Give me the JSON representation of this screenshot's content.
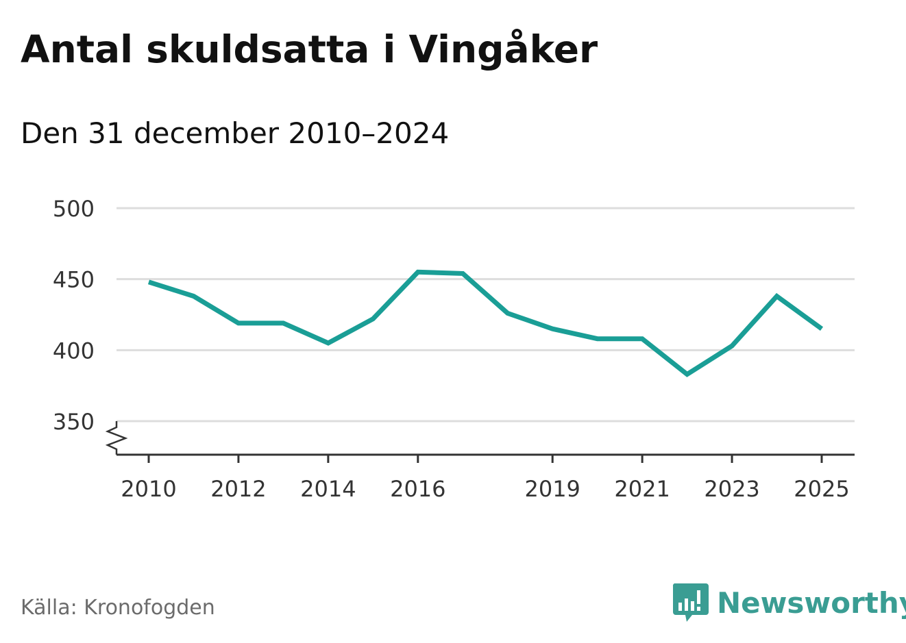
{
  "title": "Antal skuldsatta i Vingåker",
  "subtitle": "Den 31 december 2010–2024",
  "source": "Källa: Kronofogden",
  "logo": {
    "text": "Newsworthy",
    "icon": "bar-chart-speech-bubble-icon"
  },
  "colors": {
    "line": "#1a9e96",
    "grid": "#dddddd",
    "axis": "#333333",
    "logo": "#3a9d93"
  },
  "chart_data": {
    "type": "line",
    "series": [
      {
        "x": [
          2010,
          2011,
          2012,
          2013,
          2014,
          2015,
          2016,
          2017,
          2018,
          2019,
          2020,
          2021,
          2022,
          2023,
          2024,
          2025
        ],
        "values": [
          448,
          438,
          419,
          419,
          405,
          422,
          455,
          454,
          426,
          415,
          408,
          408,
          383,
          403,
          438,
          415
        ]
      }
    ],
    "x_ticks": [
      "2010",
      "2012",
      "2014",
      "2016",
      "2019",
      "2021",
      "2023",
      "2025"
    ],
    "y_ticks": [
      "350",
      "400",
      "450",
      "500"
    ],
    "ylim": [
      350,
      500
    ],
    "xlim": [
      2010,
      2025
    ],
    "y_axis_break": true,
    "grid": true
  }
}
